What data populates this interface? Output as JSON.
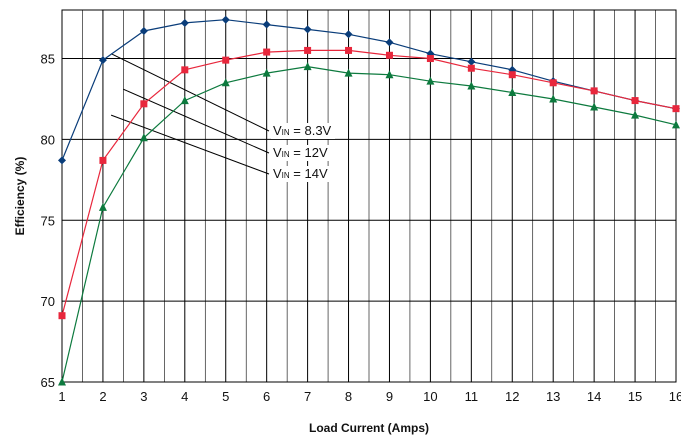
{
  "chart_data": {
    "type": "line",
    "title": "",
    "xlabel": "Load Current (Amps)",
    "ylabel": "Efficiency (%)",
    "x": [
      1,
      2,
      3,
      4,
      5,
      6,
      7,
      8,
      9,
      10,
      11,
      12,
      13,
      14,
      15,
      16
    ],
    "xlim": [
      1,
      16
    ],
    "ylim": [
      65,
      88
    ],
    "x_ticks": [
      "1",
      "2",
      "3",
      "4",
      "5",
      "6",
      "7",
      "8",
      "9",
      "10",
      "11",
      "12",
      "13",
      "14",
      "15",
      "16"
    ],
    "y_ticks": [
      "65",
      "70",
      "75",
      "80",
      "85"
    ],
    "grid": true,
    "legend": "none",
    "series": [
      {
        "name": "VIN = 8.3V",
        "label_prefix": "V",
        "label_sub": "IN",
        "label_suffix": " = 8.3V",
        "color": "#0a3d7a",
        "marker": "diamond",
        "values": [
          78.7,
          84.9,
          86.7,
          87.2,
          87.4,
          87.1,
          86.8,
          86.5,
          86.0,
          85.3,
          84.8,
          84.3,
          83.6,
          83.0,
          82.4,
          81.9
        ]
      },
      {
        "name": "VIN = 12V",
        "label_prefix": "V",
        "label_sub": "IN",
        "label_suffix": " = 12V",
        "color": "#e8273c",
        "marker": "square",
        "values": [
          69.1,
          78.7,
          82.2,
          84.3,
          84.9,
          85.4,
          85.5,
          85.5,
          85.2,
          85.0,
          84.4,
          84.0,
          83.5,
          83.0,
          82.4,
          81.9
        ]
      },
      {
        "name": "VIN = 14V",
        "label_prefix": "V",
        "label_sub": "IN",
        "label_suffix": " = 14V",
        "color": "#0d7a3e",
        "marker": "triangle",
        "values": [
          65.0,
          75.8,
          80.1,
          82.4,
          83.5,
          84.1,
          84.5,
          84.1,
          84.0,
          83.6,
          83.3,
          82.9,
          82.5,
          82.0,
          81.5,
          80.9
        ]
      }
    ]
  }
}
